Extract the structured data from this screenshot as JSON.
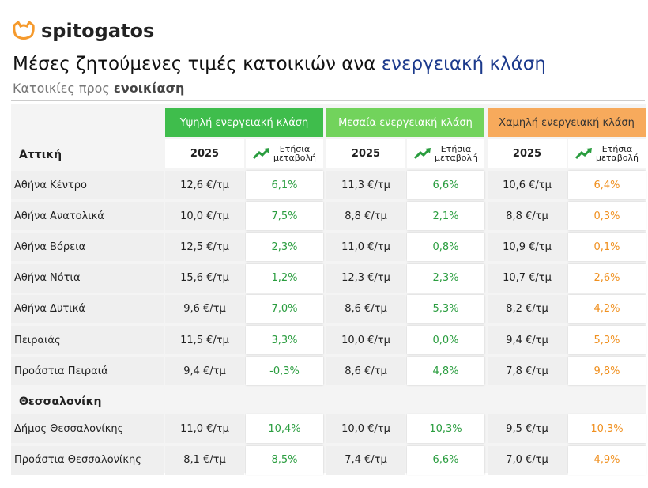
{
  "header": {
    "brand": "spitogatos",
    "title": "Μέσες ζητούμενες τιμές κατοικιών ανα",
    "title_highlight": "ενεργειακή κλάση",
    "subtitle": "Κατοικίες προς",
    "subtitle_bold": "ενοικίαση"
  },
  "table": {
    "groups": [
      {
        "name": "Υψηλή ενεργειακή κλάση",
        "year": "2025",
        "change": "Ετήσια μεταβολή",
        "color": "#3fbd4c",
        "text_color": "#2a9d3f"
      },
      {
        "name": "Μεσαία ενεργειακή κλάση",
        "year": "2025",
        "change": "Ετήσια μεταβολή",
        "color": "#72d35c",
        "text_color": "#2a9d3f"
      },
      {
        "name": "Χαμηλή ενεργειακή κλάση",
        "year": "2025",
        "change": "Ετήσια μεταβολή",
        "color": "#f7aa5c",
        "text_color": "#f0901f"
      }
    ],
    "sections": [
      {
        "name": "Αττική",
        "rows": [
          {
            "label": "Αθήνα Κέντρο",
            "cells": [
              "12,6 €/τμ",
              "6,1%",
              "11,3 €/τμ",
              "6,6%",
              "10,6 €/τμ",
              "6,4%"
            ]
          },
          {
            "label": "Αθήνα Ανατολικά",
            "cells": [
              "10,0 €/τμ",
              "7,5%",
              "8,8 €/τμ",
              "2,1%",
              "8,8 €/τμ",
              "0,3%"
            ]
          },
          {
            "label": "Αθήνα Βόρεια",
            "cells": [
              "12,5 €/τμ",
              "2,3%",
              "11,0 €/τμ",
              "0,8%",
              "10,9 €/τμ",
              "0,1%"
            ]
          },
          {
            "label": "Αθήνα Νότια",
            "cells": [
              "15,6 €/τμ",
              "1,2%",
              "12,3 €/τμ",
              "2,3%",
              "10,7 €/τμ",
              "2,6%"
            ]
          },
          {
            "label": "Αθήνα Δυτικά",
            "cells": [
              "9,6 €/τμ",
              "7,0%",
              "8,6 €/τμ",
              "5,3%",
              "8,2 €/τμ",
              "4,2%"
            ]
          },
          {
            "label": "Πειραιάς",
            "cells": [
              "11,5 €/τμ",
              "3,3%",
              "10,0 €/τμ",
              "0,0%",
              "9,4 €/τμ",
              "5,3%"
            ]
          },
          {
            "label": "Προάστια Πειραιά",
            "cells": [
              "9,4 €/τμ",
              "-0,3%",
              "8,6 €/τμ",
              "4,8%",
              "7,8 €/τμ",
              "9,8%"
            ]
          }
        ]
      },
      {
        "name": "Θεσσαλονίκη",
        "rows": [
          {
            "label": "Δήμος Θεσσαλονίκης",
            "cells": [
              "11,0 €/τμ",
              "10,4%",
              "10,0 €/τμ",
              "10,3%",
              "9,5 €/τμ",
              "10,3%"
            ]
          },
          {
            "label": "Προάστια Θεσσαλονίκης",
            "cells": [
              "8,1 €/τμ",
              "8,5%",
              "7,4 €/τμ",
              "6,6%",
              "7,0 €/τμ",
              "4,9%"
            ]
          }
        ]
      }
    ]
  }
}
